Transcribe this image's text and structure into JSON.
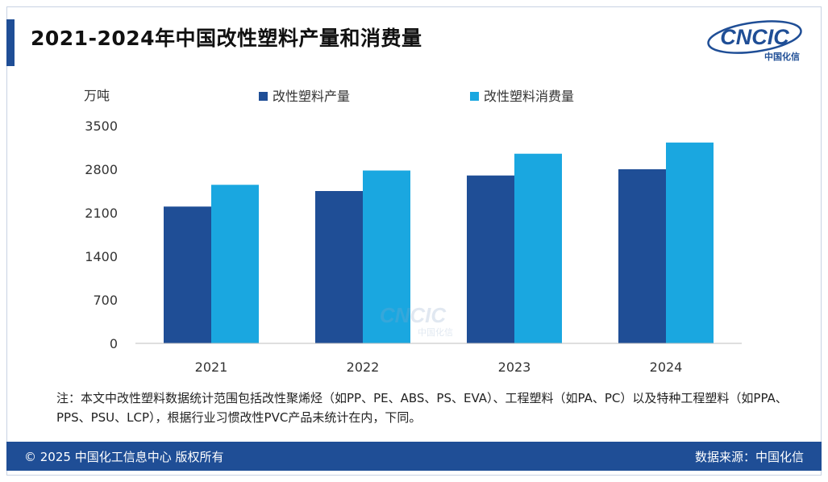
{
  "header": {
    "title": "2021-2024年中国改性塑料产量和消费量",
    "logo_text": "CNCIC",
    "logo_subtext": "中国化信"
  },
  "colors": {
    "production": "#1f4e96",
    "consumption": "#1aa7e0",
    "accent": "#1f4e96"
  },
  "chart_data": {
    "type": "bar",
    "title": "2021-2024年中国改性塑料产量和消费量",
    "ylabel": "万吨",
    "xlabel": "",
    "categories": [
      "2021",
      "2022",
      "2023",
      "2024"
    ],
    "series": [
      {
        "name": "改性塑料产量",
        "values": [
          2200,
          2450,
          2700,
          2800
        ]
      },
      {
        "name": "改性塑料消费量",
        "values": [
          2550,
          2780,
          3050,
          3230
        ]
      }
    ],
    "ylim": [
      0,
      3500
    ],
    "yticks": [
      "0",
      "700",
      "1400",
      "2100",
      "2800",
      "3500"
    ],
    "grid": false,
    "legend_position": "top",
    "watermark": {
      "text": "CNCIC",
      "subtext": "中国化信"
    }
  },
  "note": {
    "text": "注：本文中改性塑料数据统计范围包括改性聚烯烃（如PP、PE、ABS、PS、EVA）、工程塑料（如PA、PC）以及特种工程塑料（如PPA、PPS、PSU、LCP），根据行业习惯改性PVC产品未统计在内，下同。"
  },
  "footer": {
    "copyright": "© 2025 中国化工信息中心  版权所有",
    "source": "数据来源：中国化信"
  }
}
